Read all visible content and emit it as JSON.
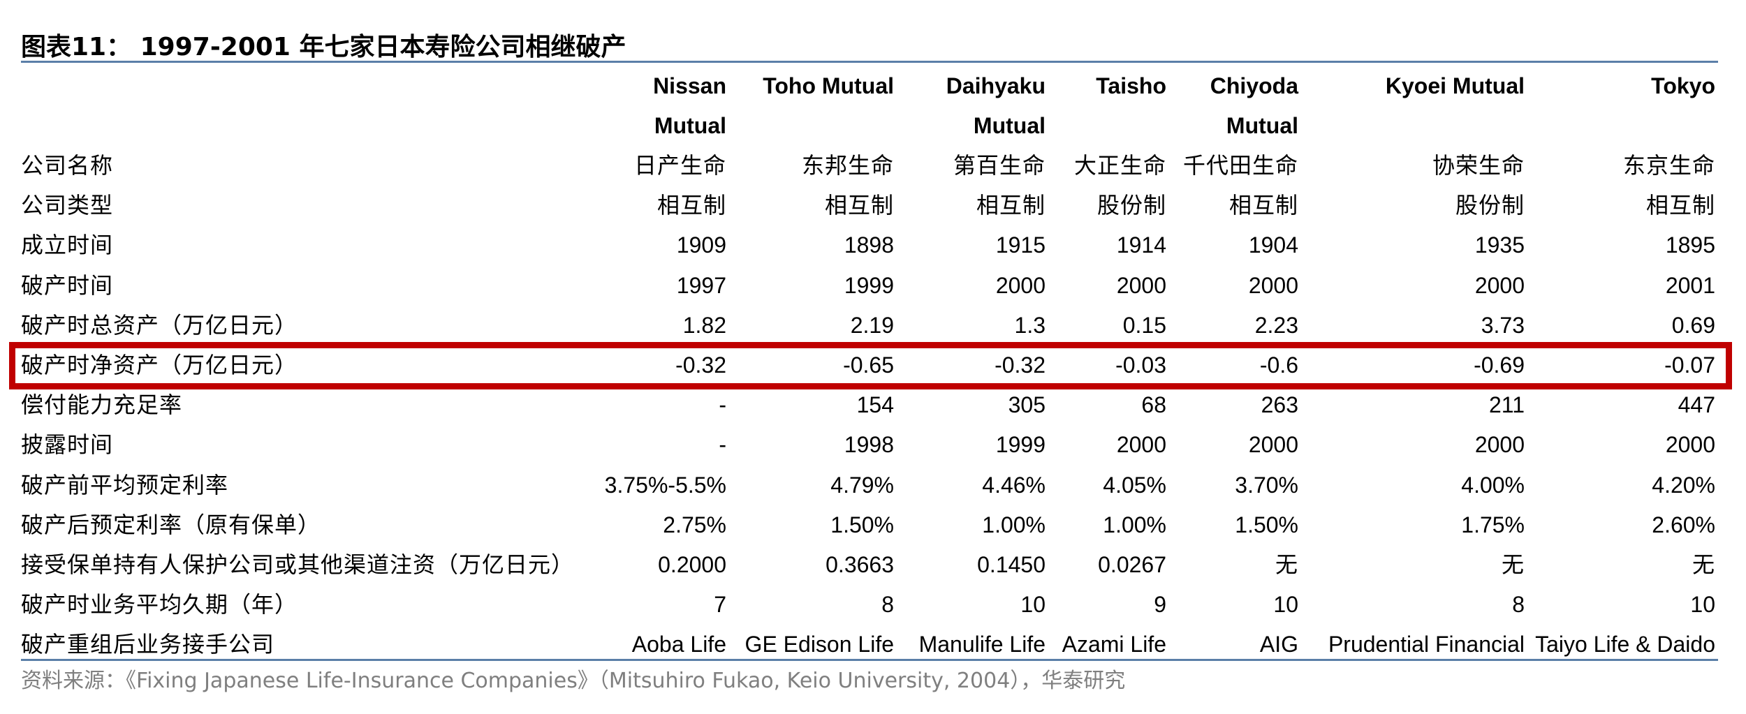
{
  "title": "图表11： 1997-2001 年七家日本寿险公司相继破产",
  "companies_en": [
    [
      "Nissan",
      "Mutual"
    ],
    [
      "Toho Mutual",
      ""
    ],
    [
      "Daihyaku",
      "Mutual"
    ],
    [
      "Taisho",
      ""
    ],
    [
      "Chiyoda",
      "Mutual"
    ],
    [
      "Kyoei Mutual",
      ""
    ],
    [
      "Tokyo",
      ""
    ]
  ],
  "rows": [
    {
      "label": "公司名称",
      "values": [
        "日产生命",
        "东邦生命",
        "第百生命",
        "大正生命",
        "千代田生命",
        "协荣生命",
        "东京生命"
      ]
    },
    {
      "label": "公司类型",
      "values": [
        "相互制",
        "相互制",
        "相互制",
        "股份制",
        "相互制",
        "股份制",
        "相互制"
      ]
    },
    {
      "label": "成立时间",
      "values": [
        "1909",
        "1898",
        "1915",
        "1914",
        "1904",
        "1935",
        "1895"
      ]
    },
    {
      "label": "破产时间",
      "values": [
        "1997",
        "1999",
        "2000",
        "2000",
        "2000",
        "2000",
        "2001"
      ]
    },
    {
      "label": "破产时总资产（万亿日元）",
      "values": [
        "1.82",
        "2.19",
        "1.3",
        "0.15",
        "2.23",
        "3.73",
        "0.69"
      ]
    },
    {
      "label": "破产时净资产（万亿日元）",
      "values": [
        "-0.32",
        "-0.65",
        "-0.32",
        "-0.03",
        "-0.6",
        "-0.69",
        "-0.07"
      ],
      "highlighted": true
    },
    {
      "label": "偿付能力充足率",
      "values": [
        "-",
        "154",
        "305",
        "68",
        "263",
        "211",
        "447"
      ]
    },
    {
      "label": "披露时间",
      "values": [
        "-",
        "1998",
        "1999",
        "2000",
        "2000",
        "2000",
        "2000"
      ]
    },
    {
      "label": "破产前平均预定利率",
      "values": [
        "3.75%-5.5%",
        "4.79%",
        "4.46%",
        "4.05%",
        "3.70%",
        "4.00%",
        "4.20%"
      ]
    },
    {
      "label": "破产后预定利率（原有保单）",
      "values": [
        "2.75%",
        "1.50%",
        "1.00%",
        "1.00%",
        "1.50%",
        "1.75%",
        "2.60%"
      ]
    },
    {
      "label": "接受保单持有人保护公司或其他渠道注资（万亿日元）",
      "values": [
        "0.2000",
        "0.3663",
        "0.1450",
        "0.0267",
        "无",
        "无",
        "无"
      ]
    },
    {
      "label": "破产时业务平均久期（年）",
      "values": [
        "7",
        "8",
        "10",
        "9",
        "10",
        "8",
        "10"
      ]
    },
    {
      "label": "破产重组后业务接手公司",
      "values": [
        "Aoba Life",
        "GE Edison Life",
        "Manulife Life",
        "Azami Life",
        "AIG",
        "Prudential Financial",
        "Taiyo Life & Daido"
      ]
    }
  ],
  "source": "资料来源：《Fixing Japanese Life-Insurance Companies》（Mitsuhiro Fukao, Keio University, 2004），华泰研究",
  "colors": {
    "rule": "#5b7fa8",
    "highlight": "#c00000",
    "source_text": "#7f7f7f"
  }
}
